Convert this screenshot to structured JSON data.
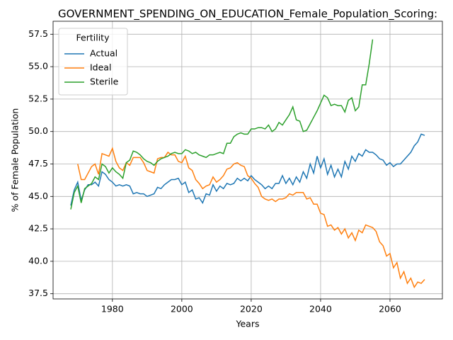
{
  "chart_data": {
    "type": "line",
    "title": "GOVERNMENT_SPENDING_ON_EDUCATION_Female_Population_Scoring:",
    "xlabel": "Years",
    "ylabel": "% of Female Population",
    "legend_title": "Fertility",
    "legend": "upper left",
    "grid": true,
    "x": [
      1968,
      1969,
      1970,
      1971,
      1972,
      1973,
      1974,
      1975,
      1976,
      1977,
      1978,
      1979,
      1980,
      1981,
      1982,
      1983,
      1984,
      1985,
      1986,
      1987,
      1988,
      1989,
      1990,
      1991,
      1992,
      1993,
      1994,
      1995,
      1996,
      1997,
      1998,
      1999,
      2000,
      2001,
      2002,
      2003,
      2004,
      2005,
      2006,
      2007,
      2008,
      2009,
      2010,
      2011,
      2012,
      2013,
      2014,
      2015,
      2016,
      2017,
      2018,
      2019,
      2020,
      2021,
      2022,
      2023,
      2024,
      2025,
      2026,
      2027,
      2028,
      2029,
      2030,
      2031,
      2032,
      2033,
      2034,
      2035,
      2036,
      2037,
      2038,
      2039,
      2040,
      2041,
      2042,
      2043,
      2044,
      2045,
      2046,
      2047,
      2048,
      2049,
      2050,
      2051,
      2052,
      2053,
      2054,
      2055,
      2056,
      2057,
      2058,
      2059,
      2060,
      2061,
      2062,
      2063,
      2064,
      2065,
      2066,
      2067,
      2068,
      2069,
      2070
    ],
    "series": [
      {
        "name": "Actual",
        "color": "#1f77b4",
        "values": [
          44.3,
          45.5,
          46.1,
          44.7,
          45.5,
          45.9,
          45.9,
          46.1,
          45.8,
          46.9,
          46.7,
          46.3,
          46.1,
          45.8,
          45.9,
          45.8,
          45.9,
          45.8,
          45.2,
          45.3,
          45.2,
          45.2,
          45.0,
          45.1,
          45.2,
          45.7,
          45.6,
          45.9,
          46.1,
          46.3,
          46.3,
          46.4,
          45.9,
          46.1,
          45.3,
          45.5,
          44.8,
          44.9,
          44.5,
          45.2,
          45.1,
          45.9,
          45.4,
          45.8,
          45.6,
          46.0,
          45.9,
          46.0,
          46.4,
          46.2,
          46.4,
          46.2,
          46.6,
          46.3,
          46.1,
          45.9,
          45.6,
          45.8,
          45.6,
          46.0,
          46.0,
          46.6,
          46.0,
          46.4,
          45.9,
          46.5,
          46.1,
          46.9,
          46.4,
          47.5,
          46.8,
          48.1,
          47.2,
          47.9,
          46.7,
          47.4,
          46.5,
          47.1,
          46.5,
          47.7,
          47.1,
          48.1,
          47.7,
          48.3,
          48.1,
          48.6,
          48.4,
          48.4,
          48.2,
          47.9,
          47.8,
          47.4,
          47.6,
          47.3,
          47.5,
          47.5,
          47.8,
          48.1,
          48.4,
          48.9,
          49.2,
          49.8,
          49.7
        ]
      },
      {
        "name": "Ideal",
        "color": "#ff7f0e",
        "values": [
          null,
          null,
          47.5,
          46.3,
          46.3,
          46.8,
          47.3,
          47.5,
          46.7,
          48.3,
          48.2,
          48.1,
          48.7,
          47.7,
          47.2,
          47.0,
          47.6,
          47.4,
          48.0,
          48.0,
          48.0,
          47.6,
          47.0,
          46.9,
          46.8,
          47.9,
          48.0,
          48.0,
          48.4,
          48.2,
          48.2,
          47.7,
          47.6,
          48.1,
          47.2,
          47.0,
          46.3,
          46.0,
          45.6,
          45.8,
          45.9,
          46.5,
          46.1,
          46.3,
          46.6,
          47.1,
          47.2,
          47.5,
          47.6,
          47.4,
          47.3,
          46.6,
          46.4,
          46.0,
          45.7,
          45.0,
          44.8,
          44.7,
          44.8,
          44.6,
          44.8,
          44.8,
          44.9,
          45.2,
          45.1,
          45.3,
          45.3,
          45.3,
          44.8,
          44.9,
          44.4,
          44.4,
          43.7,
          43.6,
          42.7,
          42.8,
          42.4,
          42.6,
          42.1,
          42.5,
          41.8,
          42.2,
          41.6,
          42.4,
          42.2,
          42.8,
          42.7,
          42.6,
          42.3,
          41.5,
          41.2,
          40.4,
          40.6,
          39.5,
          39.9,
          38.7,
          39.2,
          38.3,
          38.7,
          38.0,
          38.4,
          38.3,
          38.6
        ]
      },
      {
        "name": "Sterile",
        "color": "#2ca02c",
        "values": [
          44.0,
          45.3,
          45.8,
          44.5,
          45.6,
          45.8,
          46.0,
          46.5,
          46.3,
          47.5,
          47.3,
          46.8,
          47.2,
          46.9,
          46.7,
          46.4,
          47.6,
          47.8,
          48.5,
          48.4,
          48.2,
          47.9,
          47.7,
          47.6,
          47.4,
          47.7,
          47.9,
          48.0,
          48.1,
          48.3,
          48.4,
          48.3,
          48.3,
          48.6,
          48.5,
          48.3,
          48.4,
          48.2,
          48.1,
          48.0,
          48.2,
          48.2,
          48.3,
          48.4,
          48.3,
          49.1,
          49.1,
          49.6,
          49.8,
          49.9,
          49.8,
          49.8,
          50.2,
          50.2,
          50.3,
          50.3,
          50.2,
          50.5,
          50.0,
          50.2,
          50.7,
          50.5,
          50.9,
          51.3,
          51.9,
          50.9,
          50.8,
          50.0,
          50.1,
          50.6,
          51.1,
          51.6,
          52.2,
          52.8,
          52.6,
          52.0,
          52.1,
          52.0,
          52.0,
          51.5,
          52.4,
          52.6,
          51.6,
          51.9,
          53.6,
          53.6,
          55.2,
          57.1,
          null,
          null,
          null,
          null,
          null,
          null,
          null,
          null,
          null,
          null,
          null,
          null,
          null,
          null,
          null
        ]
      }
    ],
    "xlim": [
      1962.9,
      2075.1
    ],
    "xticks": [
      1980,
      2000,
      2020,
      2040,
      2060
    ],
    "ylim": [
      37.1,
      58.5
    ],
    "yticks": [
      37.5,
      {
        "value": 40,
        "label": "40.0"
      },
      42.5,
      {
        "value": 45,
        "label": "45.0"
      },
      47.5,
      {
        "value": 50,
        "label": "50.0"
      },
      52.5,
      {
        "value": 55,
        "label": "55.0"
      },
      57.5
    ]
  }
}
